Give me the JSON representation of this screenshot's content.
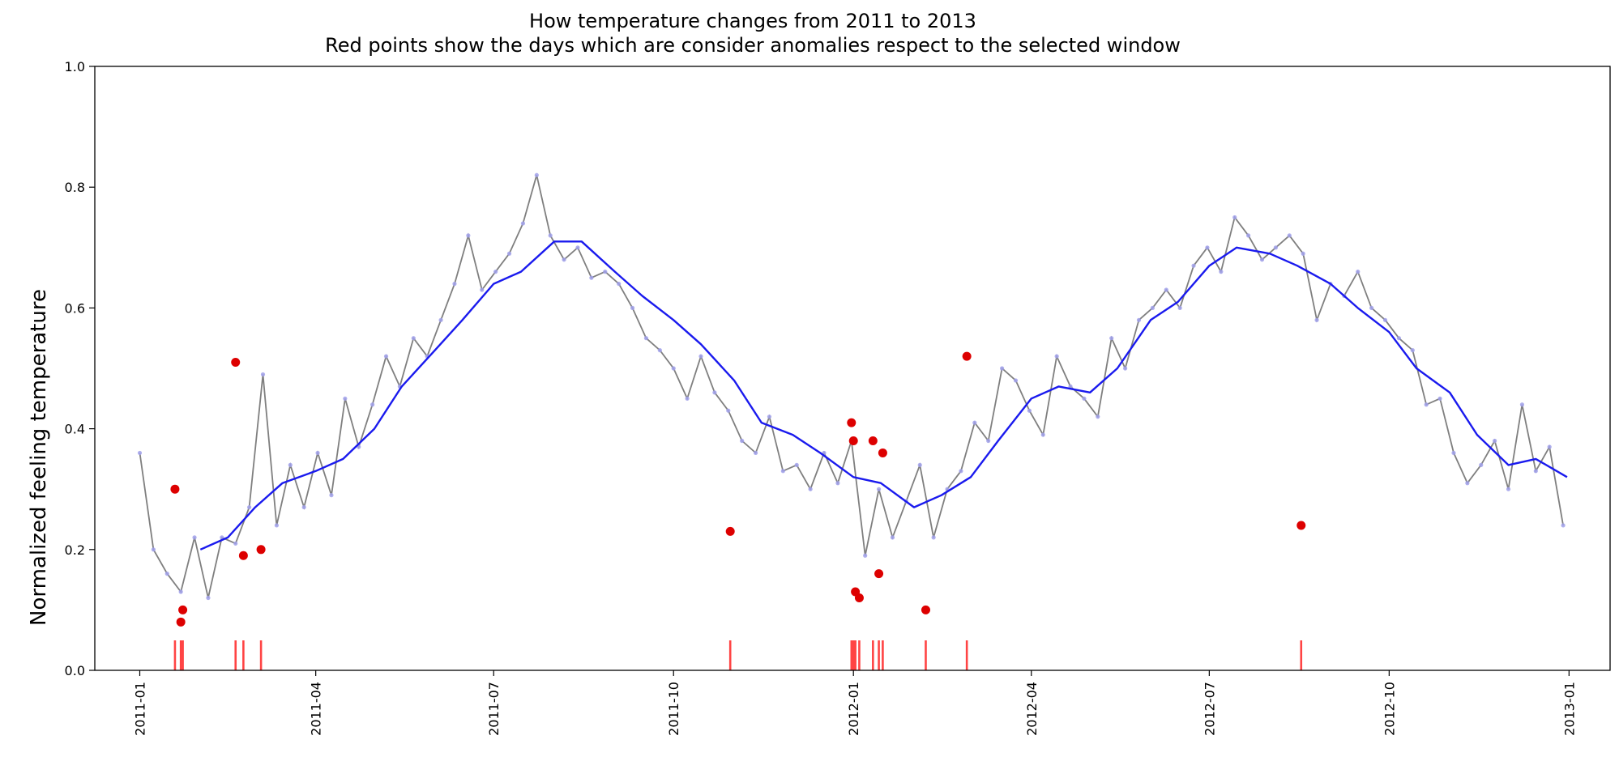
{
  "chart_data": {
    "type": "line",
    "title": "How temperature changes from 2011 to 2013",
    "subtitle": "Red points show the days which are consider anomalies respect to the selected window",
    "xlabel": "",
    "ylabel": "Normalized feeling temperature",
    "ylim": [
      0,
      1.0
    ],
    "xlim": [
      "2010-12-09",
      "2013-01-22"
    ],
    "y_ticks": [
      "0.0",
      "0.2",
      "0.4",
      "0.6",
      "0.8",
      "1.0"
    ],
    "x_ticks": [
      "2011-01",
      "2011-04",
      "2011-07",
      "2011-10",
      "2012-01",
      "2012-04",
      "2012-07",
      "2012-10",
      "2013-01"
    ],
    "grid": false,
    "colors": {
      "daily_line": "#7f7f7f",
      "daily_points": "#a0a0ea",
      "rolling_mean": "#1a1aee",
      "anomaly": "#dd0000",
      "anomaly_rug": "#ff4444"
    },
    "series": [
      {
        "type": "line",
        "x": [
          "2011-01-01",
          "2011-01-08",
          "2011-01-15",
          "2011-01-22",
          "2011-01-29",
          "2011-02-05",
          "2011-02-12",
          "2011-02-19",
          "2011-02-26",
          "2011-03-05",
          "2011-03-12",
          "2011-03-19",
          "2011-03-26",
          "2011-04-02",
          "2011-04-09",
          "2011-04-16",
          "2011-04-23",
          "2011-04-30",
          "2011-05-07",
          "2011-05-14",
          "2011-05-21",
          "2011-05-28",
          "2011-06-04",
          "2011-06-11",
          "2011-06-18",
          "2011-06-25",
          "2011-07-02",
          "2011-07-09",
          "2011-07-16",
          "2011-07-23",
          "2011-07-30",
          "2011-08-06",
          "2011-08-13",
          "2011-08-20",
          "2011-08-27",
          "2011-09-03",
          "2011-09-10",
          "2011-09-17",
          "2011-09-24",
          "2011-10-01",
          "2011-10-08",
          "2011-10-15",
          "2011-10-22",
          "2011-10-29",
          "2011-11-05",
          "2011-11-12",
          "2011-11-19",
          "2011-11-26",
          "2011-12-03",
          "2011-12-10",
          "2011-12-17",
          "2011-12-24",
          "2011-12-31",
          "2012-01-07",
          "2012-01-14",
          "2012-01-21",
          "2012-01-28",
          "2012-02-04",
          "2012-02-11",
          "2012-02-18",
          "2012-02-25",
          "2012-03-03",
          "2012-03-10",
          "2012-03-17",
          "2012-03-24",
          "2012-03-31",
          "2012-04-07",
          "2012-04-14",
          "2012-04-21",
          "2012-04-28",
          "2012-05-05",
          "2012-05-12",
          "2012-05-19",
          "2012-05-26",
          "2012-06-02",
          "2012-06-09",
          "2012-06-16",
          "2012-06-23",
          "2012-06-30",
          "2012-07-07",
          "2012-07-14",
          "2012-07-21",
          "2012-07-28",
          "2012-08-04",
          "2012-08-11",
          "2012-08-18",
          "2012-08-25",
          "2012-09-01",
          "2012-09-08",
          "2012-09-15",
          "2012-09-22",
          "2012-09-29",
          "2012-10-06",
          "2012-10-13",
          "2012-10-20",
          "2012-10-27",
          "2012-11-03",
          "2012-11-10",
          "2012-11-17",
          "2012-11-24",
          "2012-12-01",
          "2012-12-08",
          "2012-12-15",
          "2012-12-22",
          "2012-12-29"
        ],
        "y": [
          0.36,
          0.2,
          0.16,
          0.13,
          0.22,
          0.12,
          0.22,
          0.21,
          0.27,
          0.49,
          0.24,
          0.34,
          0.27,
          0.36,
          0.29,
          0.45,
          0.37,
          0.44,
          0.52,
          0.47,
          0.55,
          0.52,
          0.58,
          0.64,
          0.72,
          0.63,
          0.66,
          0.69,
          0.74,
          0.82,
          0.72,
          0.68,
          0.7,
          0.65,
          0.66,
          0.64,
          0.6,
          0.55,
          0.53,
          0.5,
          0.45,
          0.52,
          0.46,
          0.43,
          0.38,
          0.36,
          0.42,
          0.33,
          0.34,
          0.3,
          0.36,
          0.31,
          0.38,
          0.19,
          0.3,
          0.22,
          0.28,
          0.34,
          0.22,
          0.3,
          0.33,
          0.41,
          0.38,
          0.5,
          0.48,
          0.43,
          0.39,
          0.52,
          0.47,
          0.45,
          0.42,
          0.55,
          0.5,
          0.58,
          0.6,
          0.63,
          0.6,
          0.67,
          0.7,
          0.66,
          0.75,
          0.72,
          0.68,
          0.7,
          0.72,
          0.69,
          0.58,
          0.64,
          0.62,
          0.66,
          0.6,
          0.58,
          0.55,
          0.53,
          0.44,
          0.45,
          0.36,
          0.31,
          0.34,
          0.38,
          0.3,
          0.44,
          0.33,
          0.37,
          0.24
        ]
      },
      {
        "type": "line",
        "x": [
          "2011-02-01",
          "2011-02-15",
          "2011-03-01",
          "2011-03-15",
          "2011-04-01",
          "2011-04-15",
          "2011-05-01",
          "2011-05-15",
          "2011-06-01",
          "2011-06-15",
          "2011-07-01",
          "2011-07-15",
          "2011-08-01",
          "2011-08-15",
          "2011-09-01",
          "2011-09-15",
          "2011-10-01",
          "2011-10-15",
          "2011-11-01",
          "2011-11-15",
          "2011-12-01",
          "2011-12-15",
          "2012-01-01",
          "2012-01-15",
          "2012-02-01",
          "2012-02-15",
          "2012-03-01",
          "2012-03-15",
          "2012-04-01",
          "2012-04-15",
          "2012-05-01",
          "2012-05-15",
          "2012-06-01",
          "2012-06-15",
          "2012-07-01",
          "2012-07-15",
          "2012-08-01",
          "2012-08-15",
          "2012-09-01",
          "2012-09-15",
          "2012-10-01",
          "2012-10-15",
          "2012-11-01",
          "2012-11-15",
          "2012-12-01",
          "2012-12-15",
          "2012-12-31"
        ],
        "y": [
          0.2,
          0.22,
          0.27,
          0.31,
          0.33,
          0.35,
          0.4,
          0.47,
          0.53,
          0.58,
          0.64,
          0.66,
          0.71,
          0.71,
          0.66,
          0.62,
          0.58,
          0.54,
          0.48,
          0.41,
          0.39,
          0.36,
          0.32,
          0.31,
          0.27,
          0.29,
          0.32,
          0.38,
          0.45,
          0.47,
          0.46,
          0.5,
          0.58,
          0.61,
          0.67,
          0.7,
          0.69,
          0.67,
          0.64,
          0.6,
          0.56,
          0.5,
          0.46,
          0.39,
          0.34,
          0.35,
          0.32
        ]
      },
      {
        "type": "scatter",
        "x": [
          "2011-01-19",
          "2011-01-22",
          "2011-01-23",
          "2011-02-19",
          "2011-02-23",
          "2011-03-04",
          "2011-10-30",
          "2011-12-31",
          "2012-01-01",
          "2012-01-02",
          "2012-01-04",
          "2012-01-11",
          "2012-01-14",
          "2012-01-16",
          "2012-02-07",
          "2012-02-28",
          "2012-08-17"
        ],
        "y": [
          0.3,
          0.08,
          0.1,
          0.51,
          0.19,
          0.2,
          0.23,
          0.41,
          0.38,
          0.13,
          0.12,
          0.38,
          0.16,
          0.36,
          0.1,
          0.52,
          0.24
        ]
      }
    ]
  }
}
